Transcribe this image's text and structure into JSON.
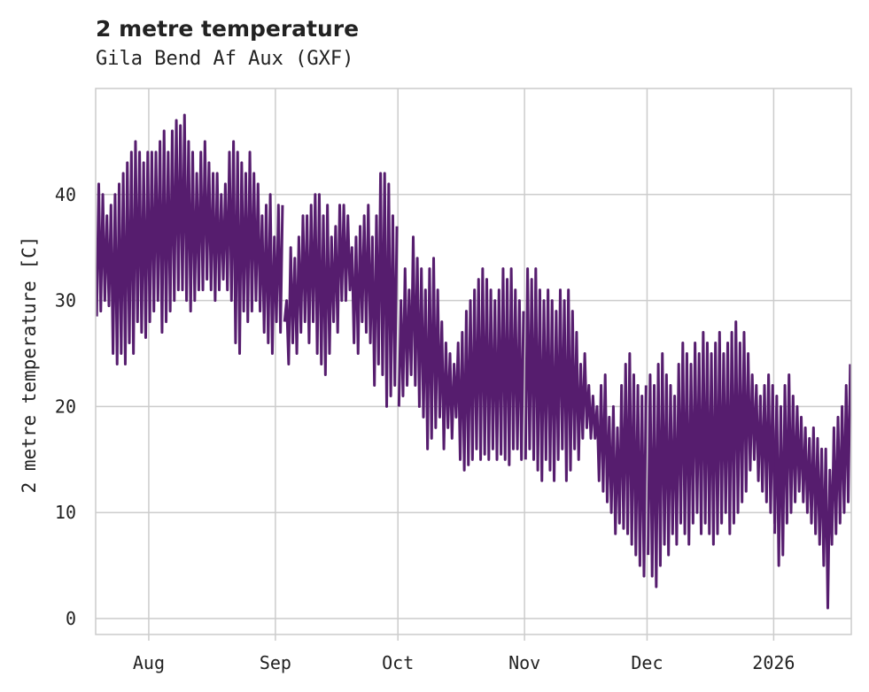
{
  "chart_data": {
    "type": "line",
    "title": "2 metre temperature",
    "subtitle": "Gila Bend Af Aux (GXF)",
    "xlabel": "",
    "ylabel": "2 metre temperature [C]",
    "x_range": [
      "2025-07-19",
      "2026-01-20"
    ],
    "ylim": [
      -1.5,
      50
    ],
    "yticks": [
      0,
      10,
      20,
      30,
      40
    ],
    "xticks": [
      {
        "label": "Aug",
        "date": "2025-08-01"
      },
      {
        "label": "Sep",
        "date": "2025-09-01"
      },
      {
        "label": "Oct",
        "date": "2025-10-01"
      },
      {
        "label": "Nov",
        "date": "2025-11-01"
      },
      {
        "label": "Dec",
        "date": "2025-12-01"
      },
      {
        "label": "2026",
        "date": "2026-01-01"
      }
    ],
    "grid": true,
    "series": [
      {
        "name": "2 metre temperature",
        "color": "#561d6e",
        "sampling": "daily minimum and maximum",
        "start_date": "2025-07-19",
        "daily_min": [
          28.5,
          29,
          30,
          29.5,
          25,
          24,
          25,
          24,
          26,
          25,
          28,
          27,
          26.5,
          28,
          29,
          30,
          27,
          28,
          29,
          30,
          31,
          31,
          30,
          29,
          30,
          31,
          31,
          32,
          31,
          30,
          31,
          32,
          31,
          30,
          26,
          25,
          29,
          28,
          29,
          30,
          29,
          27,
          26,
          25,
          28,
          27
        ],
        "daily_max": [
          41,
          40,
          38,
          39,
          40,
          41,
          42,
          43,
          44,
          45,
          44,
          43,
          44,
          44,
          44,
          45,
          46,
          44,
          46,
          47,
          46.5,
          47.5,
          45,
          44,
          42,
          44,
          45,
          43,
          42,
          42,
          40,
          41,
          44,
          45,
          44,
          43,
          42,
          44,
          42,
          41,
          38,
          39,
          40,
          36,
          39,
          39
        ],
        "segments": [
          {
            "start_date": "2025-09-03",
            "daily_min": [
              28,
              24,
              26,
              25,
              27,
              28,
              26,
              28,
              25,
              24,
              23,
              25,
              28,
              27,
              30,
              30,
              31,
              26,
              25,
              28,
              27,
              26,
              22,
              24,
              23,
              20,
              21,
              22
            ],
            "daily_max": [
              30,
              35,
              34,
              36,
              38,
              38,
              39,
              40,
              40,
              38,
              39,
              36,
              37,
              39,
              39,
              38,
              35,
              36,
              37,
              38,
              39,
              36,
              38,
              42,
              42,
              41,
              38,
              37
            ]
          },
          {
            "start_date": "2025-10-01",
            "daily_min": [
              20,
              21,
              22,
              23,
              22,
              20,
              19,
              16,
              17,
              18,
              19,
              16,
              18,
              17,
              19,
              15,
              14,
              14.5,
              15,
              16,
              15,
              15.5,
              15,
              16,
              15,
              15.5,
              15,
              14.5,
              16,
              16,
              15
            ],
            "daily_max": [
              30,
              33,
              31,
              36,
              34,
              33,
              31,
              33,
              34,
              31,
              28,
              26,
              25,
              24,
              26,
              27,
              29,
              30,
              31,
              32,
              33,
              32,
              31,
              30,
              31,
              33,
              32,
              33,
              31,
              30,
              29
            ]
          },
          {
            "start_date": "2025-11-01",
            "daily_min": [
              15,
              16,
              15,
              14,
              13,
              15,
              14,
              13,
              15,
              16,
              13,
              14,
              16,
              15,
              17,
              18,
              17,
              17,
              13,
              12,
              11,
              10,
              8,
              9,
              8.5,
              8,
              7,
              6,
              5,
              4
            ],
            "daily_max": [
              33,
              32,
              33,
              31,
              30,
              31,
              30,
              29,
              31,
              30,
              31,
              29,
              27,
              24,
              25,
              22,
              21,
              20,
              22,
              23,
              19,
              20,
              18,
              22,
              24,
              25,
              23,
              22,
              21,
              22
            ]
          },
          {
            "start_date": "2025-12-01",
            "daily_min": [
              6,
              4,
              3,
              5,
              7,
              6,
              8,
              7,
              9,
              8,
              7,
              9,
              10,
              8,
              9,
              8,
              7,
              8,
              9,
              10,
              8,
              9,
              10,
              11,
              12,
              14,
              15,
              13,
              12,
              11,
              10,
              9
            ],
            "daily_max": [
              23,
              22,
              24,
              25,
              23,
              22,
              21,
              24,
              26,
              25,
              24,
              26,
              25,
              27,
              26,
              25,
              26,
              27,
              25,
              26,
              27,
              28,
              26,
              27,
              25,
              23,
              22,
              21,
              22,
              23,
              22,
              20
            ]
          },
          {
            "start_date": "2026-01-01",
            "daily_min": [
              8,
              5,
              6,
              9,
              10,
              11,
              12,
              11,
              10,
              9,
              8,
              7,
              5,
              1,
              7,
              8,
              9,
              10,
              11
            ],
            "daily_max": [
              21,
              20,
              22,
              23,
              21,
              20,
              19,
              18,
              17,
              18,
              17,
              16,
              16,
              14,
              18,
              19,
              20,
              22,
              24
            ]
          }
        ]
      }
    ]
  }
}
